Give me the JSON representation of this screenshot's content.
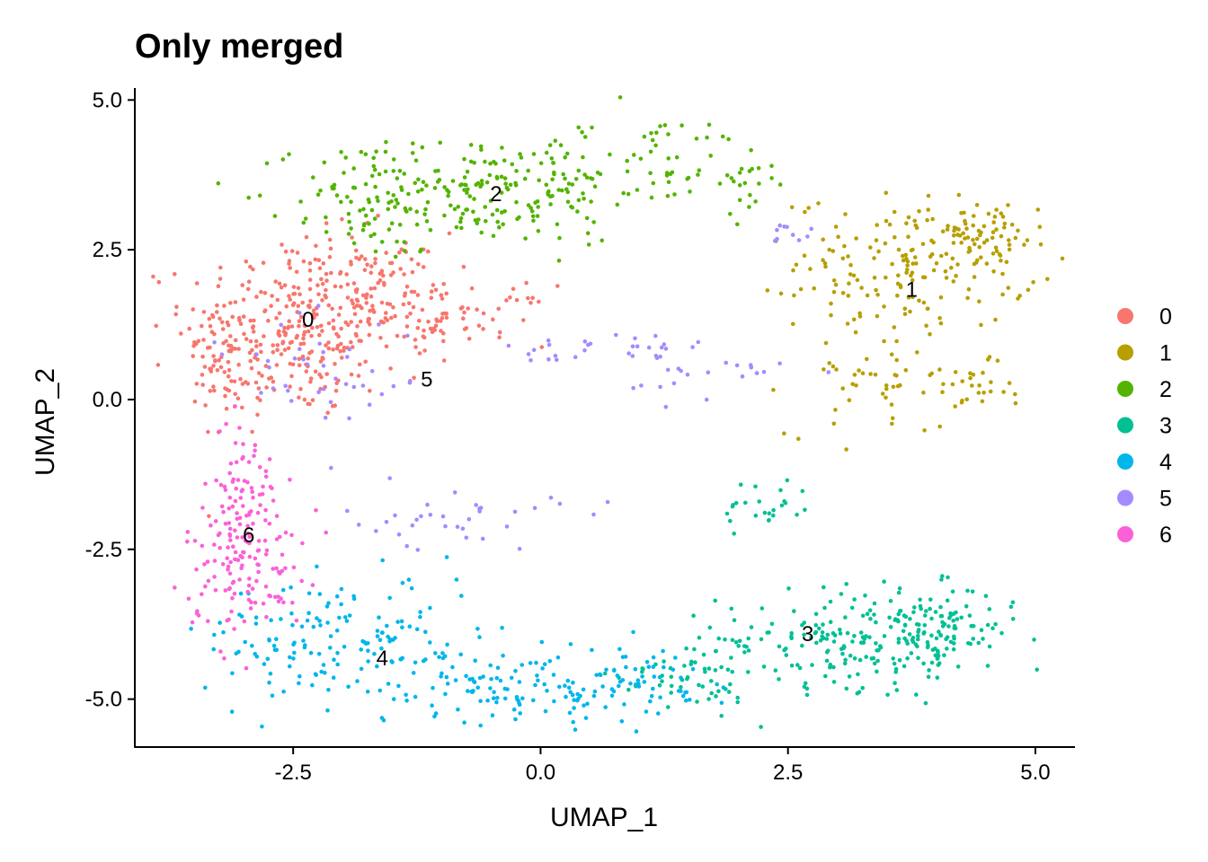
{
  "chart_data": {
    "type": "scatter",
    "title": "Only merged",
    "xlabel": "UMAP_1",
    "ylabel": "UMAP_2",
    "xlim": [
      -4.1,
      5.4
    ],
    "ylim": [
      -5.8,
      5.2
    ],
    "xticks": [
      -2.5,
      0.0,
      2.5,
      5.0
    ],
    "xtick_labels": [
      "-2.5",
      "0.0",
      "2.5",
      "5.0"
    ],
    "yticks": [
      5.0,
      2.5,
      0.0,
      -2.5,
      -5.0
    ],
    "ytick_labels": [
      "5.0",
      "2.5",
      "0.0",
      "-2.5",
      "-5.0"
    ],
    "grid": false,
    "legend_position": "right",
    "clusters": [
      {
        "name": "0",
        "color": "#F8766D",
        "label_pos": [
          -2.35,
          1.35
        ],
        "regions": [
          {
            "cx": -2.5,
            "cy": 1.2,
            "sx": 0.55,
            "sy": 0.75,
            "n": 320
          },
          {
            "cx": -1.6,
            "cy": 1.8,
            "sx": 0.35,
            "sy": 0.5,
            "n": 90
          },
          {
            "cx": -0.8,
            "cy": 1.4,
            "sx": 0.45,
            "sy": 0.25,
            "n": 60
          },
          {
            "cx": -3.2,
            "cy": 0.3,
            "sx": 0.2,
            "sy": 0.5,
            "n": 40
          }
        ]
      },
      {
        "name": "1",
        "color": "#B79F00",
        "label_pos": [
          3.75,
          1.85
        ],
        "regions": [
          {
            "cx": 3.8,
            "cy": 2.3,
            "sx": 0.6,
            "sy": 0.55,
            "n": 180
          },
          {
            "cx": 4.5,
            "cy": 2.7,
            "sx": 0.3,
            "sy": 0.25,
            "n": 40
          },
          {
            "cx": 3.4,
            "cy": 0.4,
            "sx": 0.45,
            "sy": 0.5,
            "n": 50
          },
          {
            "cx": 4.35,
            "cy": 0.1,
            "sx": 0.2,
            "sy": 0.25,
            "n": 25
          }
        ]
      },
      {
        "name": "2",
        "color": "#53B400",
        "label_pos": [
          -0.45,
          3.45
        ],
        "regions": [
          {
            "cx": -0.6,
            "cy": 3.5,
            "sx": 0.85,
            "sy": 0.45,
            "n": 200
          },
          {
            "cx": -1.6,
            "cy": 3.2,
            "sx": 0.35,
            "sy": 0.45,
            "n": 60
          },
          {
            "cx": 1.2,
            "cy": 4.0,
            "sx": 0.7,
            "sy": 0.35,
            "n": 60
          },
          {
            "cx": 2.1,
            "cy": 3.5,
            "sx": 0.2,
            "sy": 0.3,
            "n": 15
          }
        ]
      },
      {
        "name": "3",
        "color": "#00C094",
        "label_pos": [
          2.7,
          -3.9
        ],
        "regions": [
          {
            "cx": 3.3,
            "cy": -4.0,
            "sx": 0.75,
            "sy": 0.4,
            "n": 220
          },
          {
            "cx": 4.0,
            "cy": -3.7,
            "sx": 0.3,
            "sy": 0.3,
            "n": 60
          },
          {
            "cx": 2.3,
            "cy": -1.8,
            "sx": 0.25,
            "sy": 0.25,
            "n": 25
          },
          {
            "cx": 1.5,
            "cy": -4.6,
            "sx": 0.35,
            "sy": 0.3,
            "n": 50
          }
        ]
      },
      {
        "name": "4",
        "color": "#00B6EB",
        "label_pos": [
          -1.6,
          -4.3
        ],
        "regions": [
          {
            "cx": -2.0,
            "cy": -4.0,
            "sx": 0.7,
            "sy": 0.55,
            "n": 150
          },
          {
            "cx": -0.2,
            "cy": -4.8,
            "sx": 0.8,
            "sy": 0.3,
            "n": 130
          },
          {
            "cx": 0.9,
            "cy": -4.6,
            "sx": 0.4,
            "sy": 0.25,
            "n": 40
          }
        ]
      },
      {
        "name": "5",
        "color": "#A58AFF",
        "label_pos": [
          -1.15,
          0.35
        ],
        "regions": [
          {
            "cx": -2.2,
            "cy": 0.5,
            "sx": 0.55,
            "sy": 0.7,
            "n": 40
          },
          {
            "cx": 0.7,
            "cy": 0.8,
            "sx": 0.5,
            "sy": 0.2,
            "n": 30
          },
          {
            "cx": 1.8,
            "cy": 0.4,
            "sx": 0.45,
            "sy": 0.2,
            "n": 20
          },
          {
            "cx": -0.9,
            "cy": -2.0,
            "sx": 0.55,
            "sy": 0.25,
            "n": 35
          },
          {
            "cx": 2.6,
            "cy": 2.8,
            "sx": 0.15,
            "sy": 0.15,
            "n": 10
          }
        ]
      },
      {
        "name": "6",
        "color": "#FB61D7",
        "label_pos": [
          -2.95,
          -2.25
        ],
        "regions": [
          {
            "cx": -3.0,
            "cy": -2.6,
            "sx": 0.3,
            "sy": 0.65,
            "n": 150
          },
          {
            "cx": -3.0,
            "cy": -1.3,
            "sx": 0.2,
            "sy": 0.5,
            "n": 40
          }
        ]
      }
    ]
  }
}
